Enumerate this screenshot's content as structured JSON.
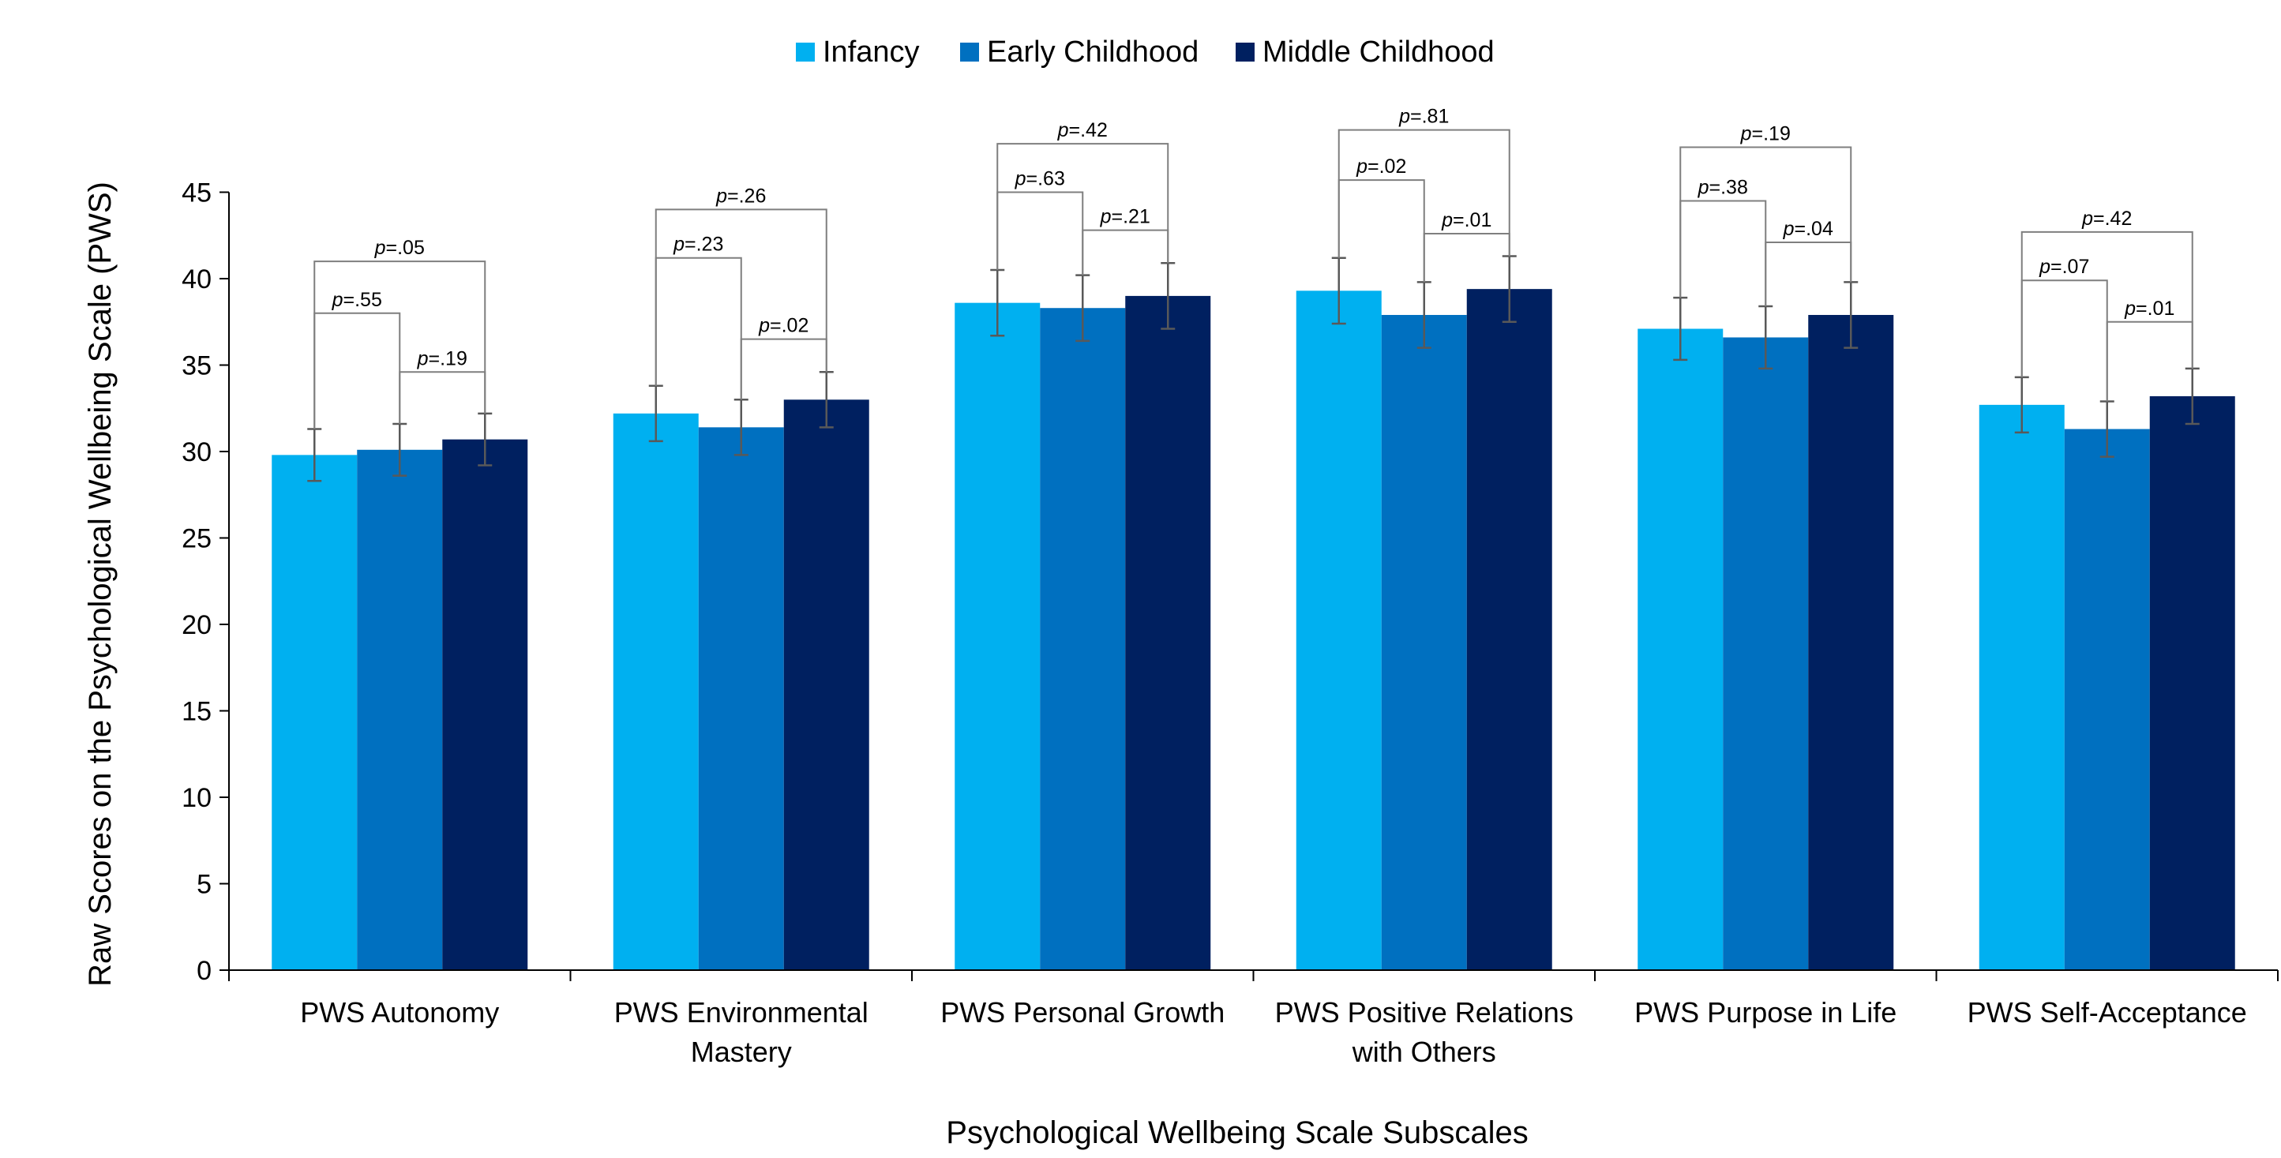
{
  "chart_data": {
    "type": "bar",
    "xlabel": "Psychological Wellbeing Scale Subscales",
    "ylabel": "Raw Scores on the Psychological Wellbeing Scale (PWS)",
    "ylim": [
      0,
      45
    ],
    "yticks": [
      0,
      5,
      10,
      15,
      20,
      25,
      30,
      35,
      40,
      45
    ],
    "grid": false,
    "legend_position": "top-center",
    "categories": [
      [
        "PWS Autonomy"
      ],
      [
        "PWS Environmental",
        "Mastery"
      ],
      [
        "PWS Personal Growth"
      ],
      [
        "PWS Positive Relations",
        "with Others"
      ],
      [
        "PWS Purpose in Life"
      ],
      [
        "PWS Self-Acceptance"
      ]
    ],
    "series": [
      {
        "name": "Infancy",
        "color": "#00b0f0",
        "values": [
          29.8,
          32.2,
          38.6,
          39.3,
          37.1,
          32.7
        ],
        "error": [
          1.5,
          1.6,
          1.9,
          1.9,
          1.8,
          1.6
        ]
      },
      {
        "name": "Early Childhood",
        "color": "#0070c0",
        "values": [
          30.1,
          31.4,
          38.3,
          37.9,
          36.6,
          31.3
        ],
        "error": [
          1.5,
          1.6,
          1.9,
          1.9,
          1.8,
          1.6
        ]
      },
      {
        "name": "Middle Childhood",
        "color": "#002060",
        "values": [
          30.7,
          33.0,
          39.0,
          39.4,
          37.9,
          33.2
        ],
        "error": [
          1.5,
          1.6,
          1.9,
          1.9,
          1.9,
          1.6
        ]
      }
    ],
    "p_label_prefix": "p",
    "comparisons": [
      {
        "infancy_vs_early": "=.55",
        "early_vs_middle": "=.19",
        "infancy_vs_middle": "=.05"
      },
      {
        "infancy_vs_early": "=.23",
        "early_vs_middle": "=.02",
        "infancy_vs_middle": "=.26"
      },
      {
        "infancy_vs_early": "=.63",
        "early_vs_middle": "=.21",
        "infancy_vs_middle": "=.42"
      },
      {
        "infancy_vs_early": "=.02",
        "early_vs_middle": "=.01",
        "infancy_vs_middle": "=.81"
      },
      {
        "infancy_vs_early": "=.38",
        "early_vs_middle": "=.04",
        "infancy_vs_middle": "=.19"
      },
      {
        "infancy_vs_early": "=.07",
        "early_vs_middle": "=.01",
        "infancy_vs_middle": "=.42"
      }
    ],
    "comparison_levels": [
      {
        "infancy_vs_early": 38.0,
        "early_vs_middle": 34.6,
        "infancy_vs_middle": 41.0
      },
      {
        "infancy_vs_early": 41.2,
        "early_vs_middle": 36.5,
        "infancy_vs_middle": 44.0
      },
      {
        "infancy_vs_early": 45.0,
        "early_vs_middle": 42.8,
        "infancy_vs_middle": 47.8
      },
      {
        "infancy_vs_early": 45.7,
        "early_vs_middle": 42.6,
        "infancy_vs_middle": 48.6
      },
      {
        "infancy_vs_early": 44.5,
        "early_vs_middle": 42.1,
        "infancy_vs_middle": 47.6
      },
      {
        "infancy_vs_early": 39.9,
        "early_vs_middle": 37.5,
        "infancy_vs_middle": 42.7
      }
    ]
  }
}
